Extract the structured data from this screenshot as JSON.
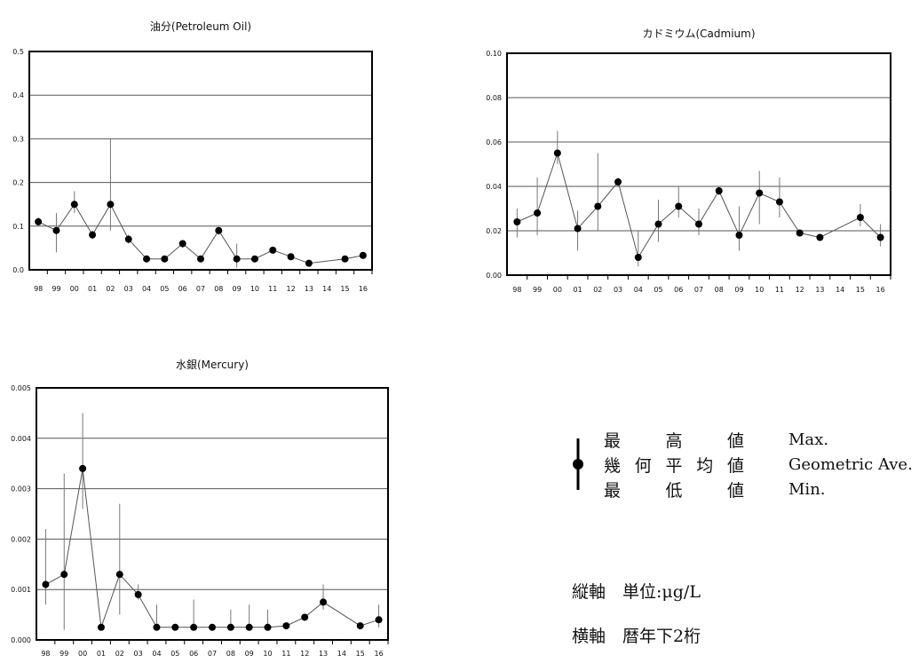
{
  "chart_data": [
    {
      "type": "scatter",
      "title": "油分(Petroleum Oil)",
      "categories": [
        "98",
        "99",
        "00",
        "01",
        "02",
        "03",
        "04",
        "05",
        "06",
        "07",
        "08",
        "09",
        "10",
        "11",
        "12",
        "13",
        "14",
        "15",
        "16"
      ],
      "ylim": [
        0,
        0.5
      ],
      "yticks": [
        "0.0",
        "0.1",
        "0.2",
        "0.3",
        "0.4",
        "0.5"
      ],
      "grid": true,
      "series": [
        {
          "values": [
            0.11,
            0.09,
            0.15,
            0.08,
            0.15,
            0.07,
            0.025,
            0.025,
            0.06,
            0.025,
            0.09,
            0.025,
            0.025,
            0.045,
            0.03,
            0.015,
            null,
            0.025,
            0.033
          ]
        },
        {
          "values": [
            0.12,
            0.13,
            0.18,
            0.09,
            0.3,
            0.08,
            0.03,
            0.03,
            0.065,
            0.03,
            0.095,
            0.06,
            0.03,
            0.05,
            0.035,
            0.02,
            null,
            0.03,
            0.04
          ]
        },
        {
          "values": [
            0.1,
            0.04,
            0.13,
            0.07,
            0.09,
            0.06,
            0.02,
            0.02,
            0.05,
            0.02,
            0.08,
            0.005,
            0.02,
            0.04,
            0.025,
            0.01,
            null,
            0.02,
            0.025
          ]
        }
      ]
    },
    {
      "type": "scatter",
      "title": "カドミウム(Cadmium)",
      "categories": [
        "98",
        "99",
        "00",
        "01",
        "02",
        "03",
        "04",
        "05",
        "06",
        "07",
        "08",
        "09",
        "10",
        "11",
        "12",
        "13",
        "14",
        "15",
        "16"
      ],
      "ylim": [
        0,
        0.1
      ],
      "yticks": [
        "0.00",
        "0.02",
        "0.04",
        "0.06",
        "0.08",
        "0.10"
      ],
      "grid": true,
      "series": [
        {
          "values": [
            0.024,
            0.028,
            0.055,
            0.021,
            0.031,
            0.042,
            0.008,
            0.023,
            0.031,
            0.023,
            0.038,
            0.018,
            0.037,
            0.033,
            0.019,
            0.017,
            null,
            0.026,
            0.017
          ]
        },
        {
          "values": [
            0.03,
            0.044,
            0.065,
            0.029,
            0.055,
            0.044,
            0.02,
            0.034,
            0.04,
            0.03,
            0.04,
            0.031,
            0.047,
            0.044,
            0.02,
            0.018,
            null,
            0.032,
            0.023
          ]
        },
        {
          "values": [
            0.017,
            0.018,
            0.05,
            0.011,
            0.02,
            0.04,
            0.004,
            0.015,
            0.026,
            0.018,
            0.036,
            0.011,
            0.023,
            0.026,
            0.018,
            0.016,
            null,
            0.022,
            0.013
          ]
        }
      ]
    },
    {
      "type": "scatter",
      "title": "水銀(Mercury)",
      "categories": [
        "98",
        "99",
        "00",
        "01",
        "02",
        "03",
        "04",
        "05",
        "06",
        "07",
        "08",
        "09",
        "10",
        "11",
        "12",
        "13",
        "14",
        "15",
        "16"
      ],
      "ylim": [
        0,
        0.005
      ],
      "yticks": [
        "0.000",
        "0.001",
        "0.002",
        "0.003",
        "0.004",
        "0.005"
      ],
      "grid": true,
      "series": [
        {
          "values": [
            0.0011,
            0.0013,
            0.0034,
            0.00025,
            0.0013,
            0.0009,
            0.00025,
            0.00025,
            0.00025,
            0.00025,
            0.00025,
            0.00025,
            0.00025,
            0.00028,
            0.00045,
            0.00075,
            null,
            0.00028,
            0.0004
          ]
        },
        {
          "values": [
            0.0022,
            0.0033,
            0.0045,
            0.0003,
            0.0027,
            0.0011,
            0.0007,
            0.0003,
            0.0008,
            0.0003,
            0.0006,
            0.0007,
            0.0006,
            0.0003,
            0.0005,
            0.0011,
            null,
            0.0003,
            0.0007
          ]
        },
        {
          "values": [
            0.0007,
            0.0002,
            0.0026,
            0.0002,
            0.0005,
            0.0008,
            0.0002,
            0.0002,
            0.0002,
            0.0002,
            0.0002,
            0.0002,
            0.0002,
            0.00025,
            0.0004,
            0.0006,
            null,
            0.00025,
            0.00025
          ]
        }
      ]
    }
  ],
  "legend": {
    "rows": [
      {
        "jp": [
          "最",
          "高",
          "値"
        ],
        "en": "Max."
      },
      {
        "jp": [
          "幾",
          "何",
          "平",
          "均",
          "値"
        ],
        "en": "Geometric Ave."
      },
      {
        "jp": [
          "最",
          "低",
          "値"
        ],
        "en": "Min."
      }
    ]
  },
  "notes": {
    "unit": "縦軸　単位:μg/L",
    "axis": "横軸　暦年下2桁"
  }
}
